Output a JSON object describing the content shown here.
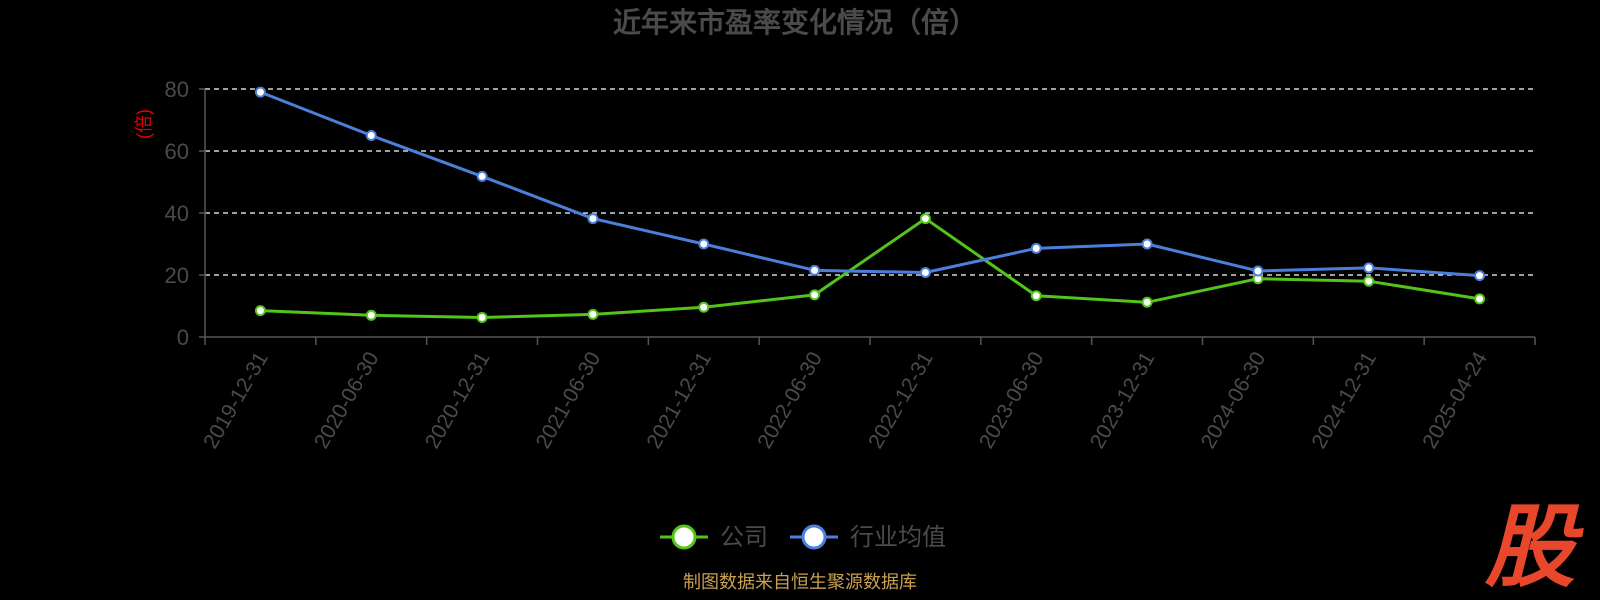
{
  "chart_data": {
    "type": "line",
    "title": "近年来市盈率变化情况（倍）",
    "ylabel": "(倍)",
    "ylim": [
      0,
      80
    ],
    "yticks": [
      0,
      20,
      40,
      60,
      80
    ],
    "grid": true,
    "legend_position": "bottom-center",
    "categories": [
      "2019-12-31",
      "2020-06-30",
      "2020-12-31",
      "2021-06-30",
      "2021-12-31",
      "2022-06-30",
      "2022-12-31",
      "2023-06-30",
      "2023-12-31",
      "2024-06-30",
      "2024-12-31",
      "2025-04-24"
    ],
    "series": [
      {
        "name": "公司",
        "color": "#52c41a",
        "values": [
          8.5,
          7.0,
          6.3,
          7.3,
          9.6,
          13.6,
          38.2,
          13.3,
          11.2,
          18.8,
          18.0,
          12.3
        ]
      },
      {
        "name": "行业均值",
        "color": "#4a7fdc",
        "values": [
          79.0,
          65.0,
          51.8,
          38.2,
          30.0,
          21.5,
          20.8,
          28.6,
          30.0,
          21.3,
          22.3,
          19.8
        ]
      }
    ]
  },
  "footer": {
    "source": "制图数据来自恒生聚源数据库"
  },
  "logo": {
    "text": "股",
    "color": "#e8472c"
  }
}
